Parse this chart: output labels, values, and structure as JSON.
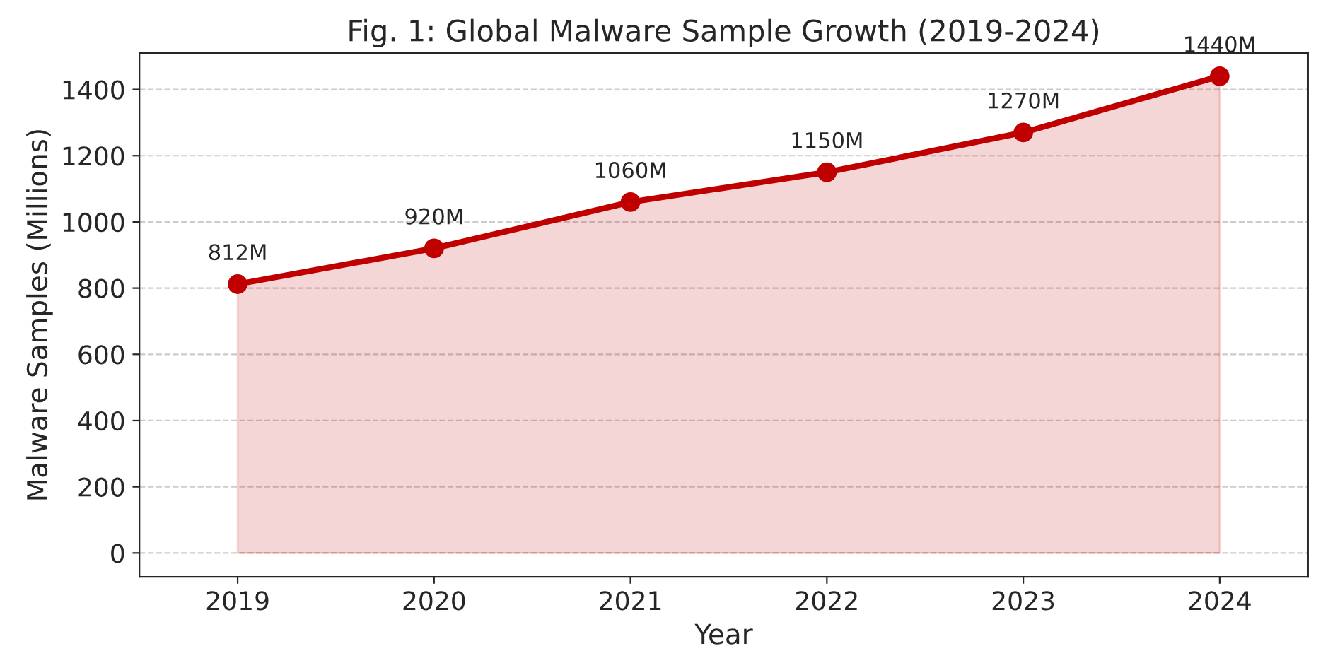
{
  "chart_data": {
    "type": "area",
    "title": "Fig. 1: Global Malware Sample Growth (2019-2024)",
    "xlabel": "Year",
    "ylabel": "Malware Samples (Millions)",
    "x": [
      2019,
      2020,
      2021,
      2022,
      2023,
      2024
    ],
    "series": [
      {
        "color": "#c00000",
        "values": [
          812,
          920,
          1060,
          1150,
          1270,
          1440
        ],
        "value_labels": [
          "812M",
          "920M",
          "1060M",
          "1150M",
          "1270M",
          "1440M"
        ]
      }
    ],
    "xlim": [
      2018.5,
      2024.45
    ],
    "xticks": [
      2019,
      2020,
      2021,
      2022,
      2023,
      2024
    ],
    "ylim": [
      -72,
      1510
    ],
    "yticks": [
      0,
      200,
      400,
      600,
      800,
      1000,
      1200,
      1400
    ],
    "grid": "y",
    "marker": "circle",
    "line_style": "solid",
    "legend": false
  }
}
